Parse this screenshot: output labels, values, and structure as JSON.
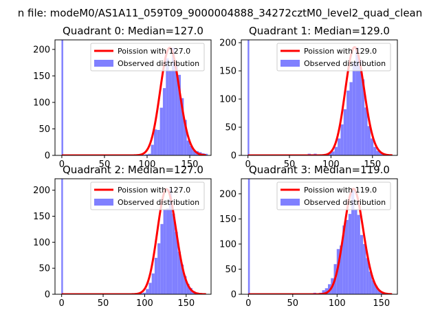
{
  "figure_title": "n file: modeM0/AS1A11_059T09_9000004888_34272cztM0_level2_quad_clean",
  "legend": {
    "observed_label": "Observed distribution",
    "line_color": "#ff0000",
    "bar_color": "#8080ff"
  },
  "chart_data": [
    {
      "type": "bar",
      "title": "Quadrant 0: Median=127.0",
      "median": 127.0,
      "line_label": "Poission with 127.0",
      "xlim": [
        -8,
        175
      ],
      "ylim": [
        0,
        218
      ],
      "xticks": [
        0,
        50,
        100,
        150
      ],
      "yticks": [
        0,
        50,
        100,
        150,
        200
      ],
      "spike": {
        "x": 0,
        "value": 218
      },
      "bin_width": 3.5,
      "bins": [
        {
          "x": 87,
          "y": 1
        },
        {
          "x": 90.5,
          "y": 1
        },
        {
          "x": 94,
          "y": 1
        },
        {
          "x": 97.5,
          "y": 2
        },
        {
          "x": 101,
          "y": 3
        },
        {
          "x": 104.5,
          "y": 20
        },
        {
          "x": 108,
          "y": 49
        },
        {
          "x": 111.5,
          "y": 48
        },
        {
          "x": 115,
          "y": 90
        },
        {
          "x": 118.5,
          "y": 127
        },
        {
          "x": 122,
          "y": 183
        },
        {
          "x": 125.5,
          "y": 160
        },
        {
          "x": 129,
          "y": 203
        },
        {
          "x": 132.5,
          "y": 172
        },
        {
          "x": 136,
          "y": 152
        },
        {
          "x": 139.5,
          "y": 108
        },
        {
          "x": 143,
          "y": 67
        },
        {
          "x": 146.5,
          "y": 28
        },
        {
          "x": 150,
          "y": 18
        },
        {
          "x": 153.5,
          "y": 10
        },
        {
          "x": 157,
          "y": 8
        },
        {
          "x": 160.5,
          "y": 6
        },
        {
          "x": 164,
          "y": 4
        },
        {
          "x": 167.5,
          "y": 3
        }
      ]
    },
    {
      "type": "bar",
      "title": "Quadrant 1: Median=129.0",
      "median": 129.0,
      "line_label": "Poission with 129.0",
      "xlim": [
        -8,
        180
      ],
      "ylim": [
        0,
        205
      ],
      "xticks": [
        0,
        50,
        100,
        150
      ],
      "yticks": [
        0,
        50,
        100,
        150,
        200
      ],
      "spike": {
        "x": 0,
        "value": 205
      },
      "bin_width": 3.6,
      "bins": [
        {
          "x": 72,
          "y": 3
        },
        {
          "x": 75.6,
          "y": 2
        },
        {
          "x": 79.2,
          "y": 3
        },
        {
          "x": 82.8,
          "y": 2
        },
        {
          "x": 90,
          "y": 2
        },
        {
          "x": 93.6,
          "y": 3
        },
        {
          "x": 97.2,
          "y": 5
        },
        {
          "x": 100.8,
          "y": 7
        },
        {
          "x": 104.4,
          "y": 15
        },
        {
          "x": 108,
          "y": 30
        },
        {
          "x": 111.6,
          "y": 55
        },
        {
          "x": 115.2,
          "y": 82
        },
        {
          "x": 118.8,
          "y": 115
        },
        {
          "x": 122.4,
          "y": 130
        },
        {
          "x": 126,
          "y": 165
        },
        {
          "x": 129.6,
          "y": 192
        },
        {
          "x": 133.2,
          "y": 170
        },
        {
          "x": 136.8,
          "y": 135
        },
        {
          "x": 140.4,
          "y": 85
        },
        {
          "x": 144,
          "y": 52
        },
        {
          "x": 147.6,
          "y": 30
        },
        {
          "x": 151.2,
          "y": 15
        },
        {
          "x": 154.8,
          "y": 8
        },
        {
          "x": 158.4,
          "y": 5
        },
        {
          "x": 162,
          "y": 3
        }
      ]
    },
    {
      "type": "bar",
      "title": "Quadrant 2: Median=127.0",
      "median": 127.0,
      "line_label": "Poission with 127.0",
      "xlim": [
        -8,
        180
      ],
      "ylim": [
        0,
        222
      ],
      "xticks": [
        0,
        50,
        100,
        150
      ],
      "yticks": [
        0,
        50,
        100,
        150,
        200
      ],
      "spike": {
        "x": 0,
        "value": 222
      },
      "bin_width": 3.5,
      "bins": [
        {
          "x": 84,
          "y": 2
        },
        {
          "x": 87.5,
          "y": 2
        },
        {
          "x": 94.5,
          "y": 2
        },
        {
          "x": 98,
          "y": 3
        },
        {
          "x": 101.5,
          "y": 10
        },
        {
          "x": 105,
          "y": 22
        },
        {
          "x": 108.5,
          "y": 40
        },
        {
          "x": 112,
          "y": 70
        },
        {
          "x": 115.5,
          "y": 98
        },
        {
          "x": 119,
          "y": 135
        },
        {
          "x": 122.5,
          "y": 163
        },
        {
          "x": 126,
          "y": 165
        },
        {
          "x": 129.5,
          "y": 202
        },
        {
          "x": 133,
          "y": 155
        },
        {
          "x": 136.5,
          "y": 120
        },
        {
          "x": 140,
          "y": 82
        },
        {
          "x": 143.5,
          "y": 57
        },
        {
          "x": 147,
          "y": 35
        },
        {
          "x": 150.5,
          "y": 20
        },
        {
          "x": 154,
          "y": 12
        },
        {
          "x": 157.5,
          "y": 6
        },
        {
          "x": 161,
          "y": 3
        }
      ]
    },
    {
      "type": "bar",
      "title": "Quadrant 3: Median=119.0",
      "median": 119.0,
      "line_label": "Poission with 119.0",
      "xlim": [
        -8,
        168
      ],
      "ylim": [
        0,
        230
      ],
      "xticks": [
        0,
        50,
        100,
        150
      ],
      "yticks": [
        0,
        50,
        100,
        150,
        200
      ],
      "spike": {
        "x": 0,
        "value": 230
      },
      "bin_width": 3.3,
      "bins": [
        {
          "x": 60,
          "y": 2
        },
        {
          "x": 63.3,
          "y": 2
        },
        {
          "x": 69.9,
          "y": 2
        },
        {
          "x": 73.2,
          "y": 3
        },
        {
          "x": 76.5,
          "y": 2
        },
        {
          "x": 79.8,
          "y": 3
        },
        {
          "x": 83.1,
          "y": 8
        },
        {
          "x": 86.4,
          "y": 12
        },
        {
          "x": 89.7,
          "y": 20
        },
        {
          "x": 93,
          "y": 32
        },
        {
          "x": 96.3,
          "y": 60
        },
        {
          "x": 99.6,
          "y": 90
        },
        {
          "x": 102.9,
          "y": 97
        },
        {
          "x": 106.2,
          "y": 137
        },
        {
          "x": 109.5,
          "y": 148
        },
        {
          "x": 112.8,
          "y": 160
        },
        {
          "x": 116.1,
          "y": 210
        },
        {
          "x": 119.4,
          "y": 168
        },
        {
          "x": 122.7,
          "y": 158
        },
        {
          "x": 126,
          "y": 118
        },
        {
          "x": 129.3,
          "y": 100
        },
        {
          "x": 132.6,
          "y": 72
        },
        {
          "x": 135.9,
          "y": 45
        },
        {
          "x": 139.2,
          "y": 28
        },
        {
          "x": 142.5,
          "y": 17
        },
        {
          "x": 145.8,
          "y": 8
        },
        {
          "x": 149.1,
          "y": 4
        },
        {
          "x": 152.4,
          "y": 2
        }
      ]
    }
  ]
}
